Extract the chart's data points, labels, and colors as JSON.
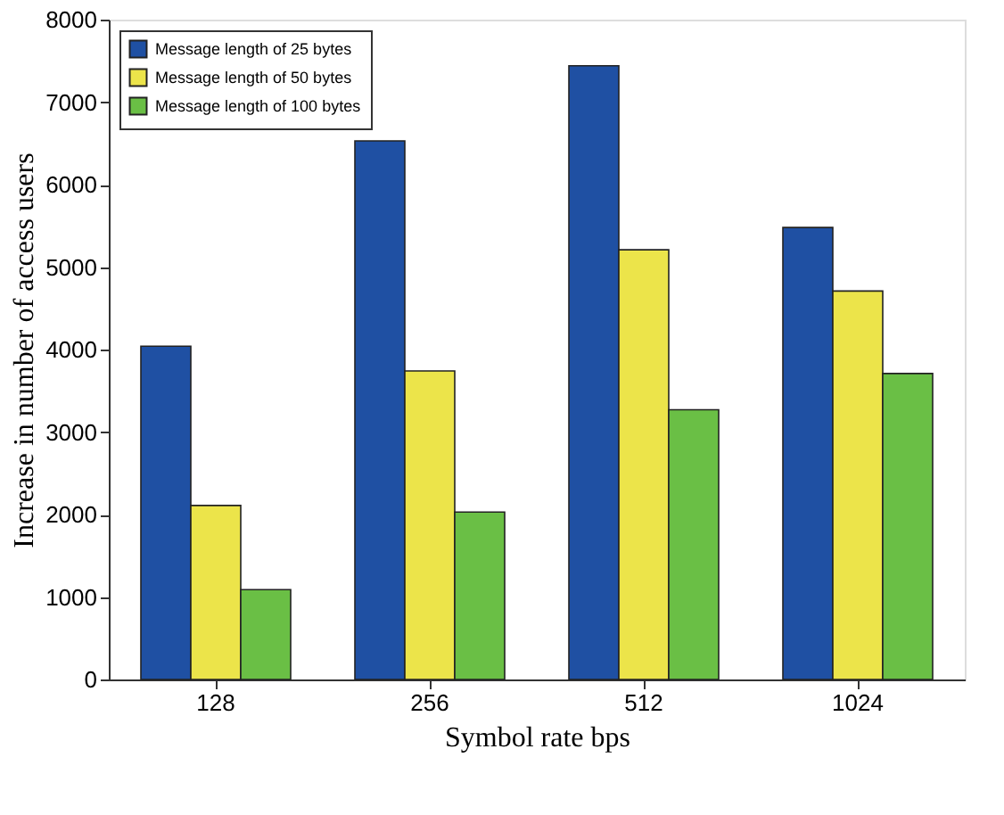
{
  "chart_data": {
    "type": "bar",
    "xlabel": "Symbol rate bps",
    "ylabel": "Increase in number of access users",
    "categories": [
      "128",
      "256",
      "512",
      "1024"
    ],
    "series": [
      {
        "name": "Message length of 25 bytes",
        "color": "#1f50a3",
        "values": [
          4040,
          6530,
          7440,
          5480
        ]
      },
      {
        "name": "Message length of 50 bytes",
        "color": "#ece44a",
        "values": [
          2110,
          3740,
          5210,
          4710
        ]
      },
      {
        "name": "Message length of 100 bytes",
        "color": "#6abf45",
        "values": [
          1090,
          2030,
          3270,
          3710
        ]
      }
    ],
    "ylim": [
      0,
      8000
    ],
    "yticks": [
      0,
      1000,
      2000,
      3000,
      4000,
      5000,
      6000,
      7000,
      8000
    ],
    "grid": false,
    "legend": "top left"
  }
}
